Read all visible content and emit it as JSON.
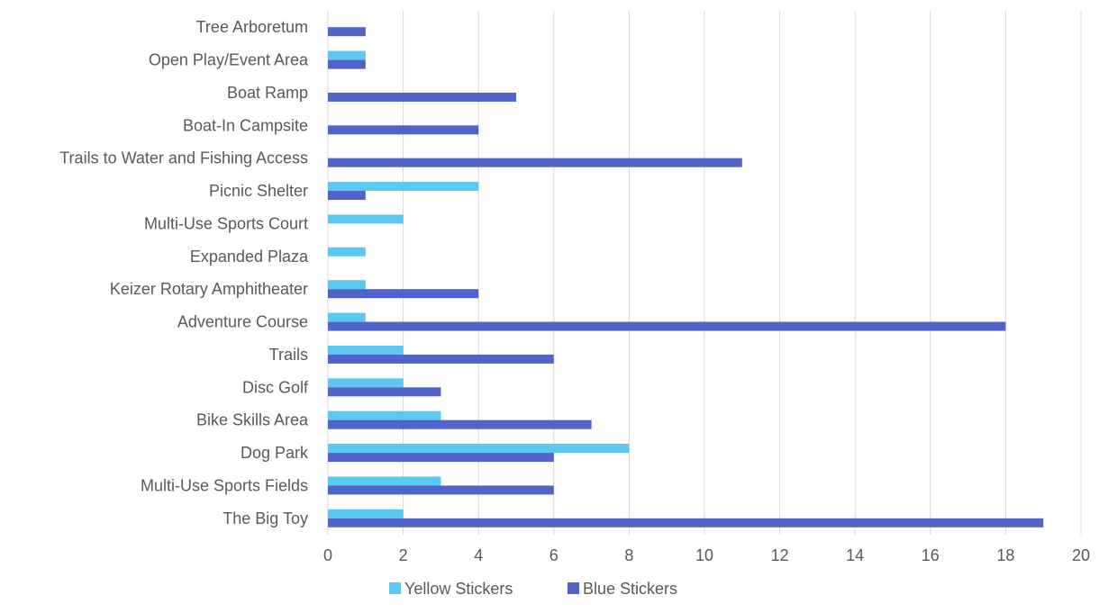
{
  "chart_data": {
    "type": "bar",
    "orientation": "horizontal",
    "categories": [
      "Tree Arboretum",
      "Open Play/Event Area",
      "Boat Ramp",
      "Boat-In Campsite",
      "Trails to Water and Fishing Access",
      "Picnic Shelter",
      "Multi-Use Sports Court",
      "Expanded Plaza",
      "Keizer Rotary Amphitheater",
      "Adventure Course",
      "Trails",
      "Disc Golf",
      "Bike Skills Area",
      "Dog Park",
      "Multi-Use Sports Fields",
      "The Big Toy"
    ],
    "series": [
      {
        "name": "Yellow Stickers",
        "color": "#5bc8f0",
        "values": [
          0,
          1,
          0,
          0,
          0,
          4,
          2,
          1,
          1,
          1,
          2,
          2,
          3,
          8,
          3,
          2
        ]
      },
      {
        "name": "Blue Stickers",
        "color": "#4f63c9",
        "values": [
          1,
          1,
          5,
          4,
          11,
          1,
          0,
          0,
          4,
          18,
          6,
          3,
          7,
          6,
          6,
          19
        ]
      }
    ],
    "xlim": [
      0,
      20
    ],
    "xticks": [
      "0",
      "2",
      "4",
      "6",
      "8",
      "10",
      "12",
      "14",
      "16",
      "18",
      "20"
    ],
    "grid": true,
    "legend_position": "bottom"
  }
}
